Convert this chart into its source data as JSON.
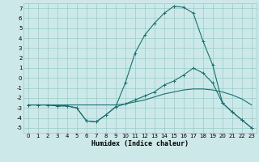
{
  "xlabel": "Humidex (Indice chaleur)",
  "background_color": "#cce8e8",
  "grid_color": "#99cccc",
  "line_color": "#1a7070",
  "xlim": [
    -0.5,
    23.5
  ],
  "ylim": [
    -5.5,
    7.5
  ],
  "yticks": [
    -5,
    -4,
    -3,
    -2,
    -1,
    0,
    1,
    2,
    3,
    4,
    5,
    6,
    7
  ],
  "xticks": [
    0,
    1,
    2,
    3,
    4,
    5,
    6,
    7,
    8,
    9,
    10,
    11,
    12,
    13,
    14,
    15,
    16,
    17,
    18,
    19,
    20,
    21,
    22,
    23
  ],
  "series": [
    {
      "x": [
        0,
        1,
        2,
        3,
        4,
        5,
        6,
        7,
        8,
        9,
        10,
        11,
        12,
        13,
        14,
        15,
        16,
        17,
        18,
        19,
        20,
        21,
        22,
        23
      ],
      "y": [
        -2.7,
        -2.7,
        -2.7,
        -2.7,
        -2.7,
        -2.7,
        -2.7,
        -2.7,
        -2.7,
        -2.7,
        -2.6,
        -2.4,
        -2.2,
        -1.9,
        -1.6,
        -1.4,
        -1.2,
        -1.1,
        -1.1,
        -1.2,
        -1.4,
        -1.7,
        -2.1,
        -2.7
      ],
      "marker": null,
      "linewidth": 0.8
    },
    {
      "x": [
        0,
        1,
        2,
        3,
        4,
        5,
        6,
        7,
        8,
        9,
        10,
        11,
        12,
        13,
        14,
        15,
        16,
        17,
        18,
        19,
        20,
        21,
        22,
        23
      ],
      "y": [
        -2.7,
        -2.7,
        -2.7,
        -2.8,
        -2.8,
        -3.0,
        -4.3,
        -4.4,
        -3.7,
        -2.9,
        -2.6,
        -2.2,
        -1.8,
        -1.4,
        -0.7,
        -0.3,
        0.3,
        1.0,
        0.5,
        -0.5,
        -2.5,
        -3.4,
        -4.2,
        -5.0
      ],
      "marker": "+",
      "linewidth": 0.8
    },
    {
      "x": [
        0,
        1,
        2,
        3,
        4,
        5,
        6,
        7,
        8,
        9,
        10,
        11,
        12,
        13,
        14,
        15,
        16,
        17,
        18,
        19,
        20,
        21,
        22,
        23
      ],
      "y": [
        -2.7,
        -2.7,
        -2.7,
        -2.8,
        -2.8,
        -3.0,
        -4.3,
        -4.4,
        -3.7,
        -2.9,
        -0.5,
        2.5,
        4.3,
        5.5,
        6.5,
        7.2,
        7.1,
        6.5,
        3.7,
        1.3,
        -2.5,
        -3.4,
        -4.2,
        -5.0
      ],
      "marker": "+",
      "linewidth": 0.8
    }
  ]
}
